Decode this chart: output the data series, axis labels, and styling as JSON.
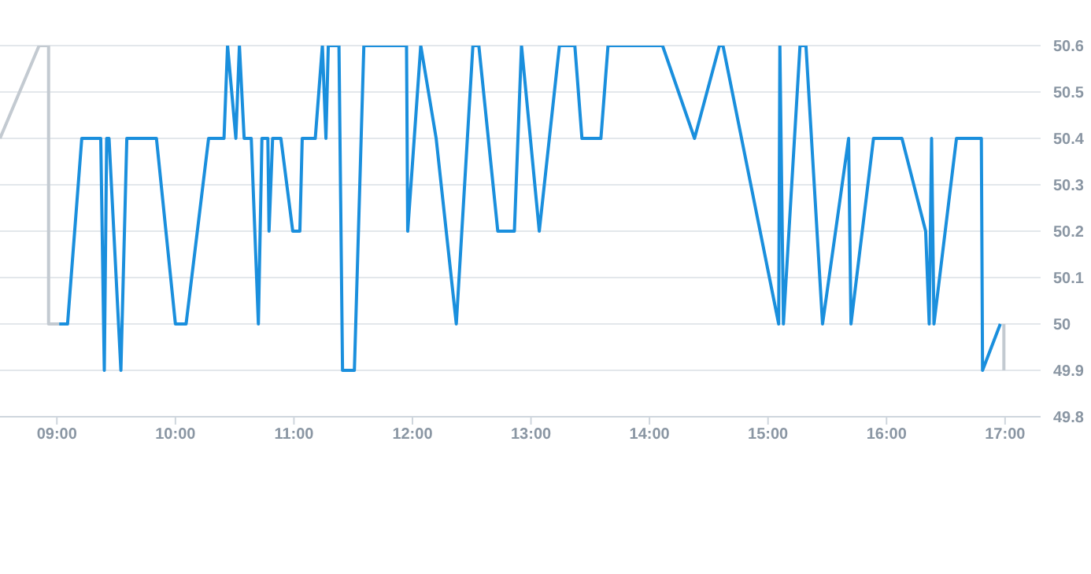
{
  "chart_data": {
    "type": "line",
    "grid": "y",
    "legend": false,
    "marker": "none",
    "line_style": "solid",
    "xlim": [
      8.52,
      17.3
    ],
    "xticks": [
      {
        "value": 9,
        "label": "09:00"
      },
      {
        "value": 10,
        "label": "10:00"
      },
      {
        "value": 11,
        "label": "11:00"
      },
      {
        "value": 12,
        "label": "12:00"
      },
      {
        "value": 13,
        "label": "13:00"
      },
      {
        "value": 14,
        "label": "14:00"
      },
      {
        "value": 15,
        "label": "15:00"
      },
      {
        "value": 16,
        "label": "16:00"
      },
      {
        "value": 17,
        "label": "17:00"
      }
    ],
    "ylim": [
      49.8,
      50.6
    ],
    "yticks": [
      49.8,
      49.9,
      50,
      50.1,
      50.2,
      50.3,
      50.4,
      50.5,
      50.6
    ],
    "series": [
      {
        "color": "#c3cad1",
        "x": [
          8.52,
          8.85,
          8.93,
          8.93,
          9.05,
          16.8,
          16.99,
          16.99
        ],
        "values": [
          50.4,
          50.6,
          50.6,
          50.0,
          50.0,
          null,
          50.0,
          49.9
        ]
      },
      {
        "color": "#1a8fdd",
        "x": [
          9.02,
          9.09,
          9.21,
          9.37,
          9.4,
          9.42,
          9.44,
          9.54,
          9.59,
          9.84,
          10.0,
          10.09,
          10.28,
          10.41,
          10.44,
          10.51,
          10.54,
          10.58,
          10.64,
          10.7,
          10.73,
          10.78,
          10.79,
          10.82,
          10.89,
          10.99,
          11.05,
          11.07,
          11.18,
          11.24,
          11.27,
          11.29,
          11.38,
          11.41,
          11.51,
          11.59,
          11.95,
          11.96,
          12.07,
          12.2,
          12.37,
          12.51,
          12.56,
          12.72,
          12.86,
          12.92,
          13.07,
          13.24,
          13.37,
          13.43,
          13.59,
          13.65,
          14.11,
          14.38,
          14.59,
          14.62,
          15.09,
          15.1,
          15.13,
          15.27,
          15.32,
          15.46,
          15.68,
          15.7,
          15.89,
          16.13,
          16.33,
          16.36,
          16.38,
          16.4,
          16.59,
          16.8,
          16.81,
          16.96
        ],
        "values": [
          50.0,
          50.0,
          50.4,
          50.4,
          49.9,
          50.4,
          50.4,
          49.9,
          50.4,
          50.4,
          50.0,
          50.0,
          50.4,
          50.4,
          50.6,
          50.4,
          50.6,
          50.4,
          50.4,
          50.0,
          50.4,
          50.4,
          50.2,
          50.4,
          50.4,
          50.2,
          50.2,
          50.4,
          50.4,
          50.6,
          50.4,
          50.6,
          50.6,
          49.9,
          49.9,
          50.6,
          50.6,
          50.2,
          50.6,
          50.4,
          50.0,
          50.6,
          50.6,
          50.2,
          50.2,
          50.6,
          50.2,
          50.6,
          50.6,
          50.4,
          50.4,
          50.6,
          50.6,
          50.4,
          50.6,
          50.6,
          50.0,
          50.6,
          50.0,
          50.6,
          50.6,
          50.0,
          50.4,
          50.0,
          50.4,
          50.4,
          50.2,
          50.0,
          50.4,
          50.0,
          50.4,
          50.4,
          49.9,
          50.0
        ]
      }
    ]
  }
}
